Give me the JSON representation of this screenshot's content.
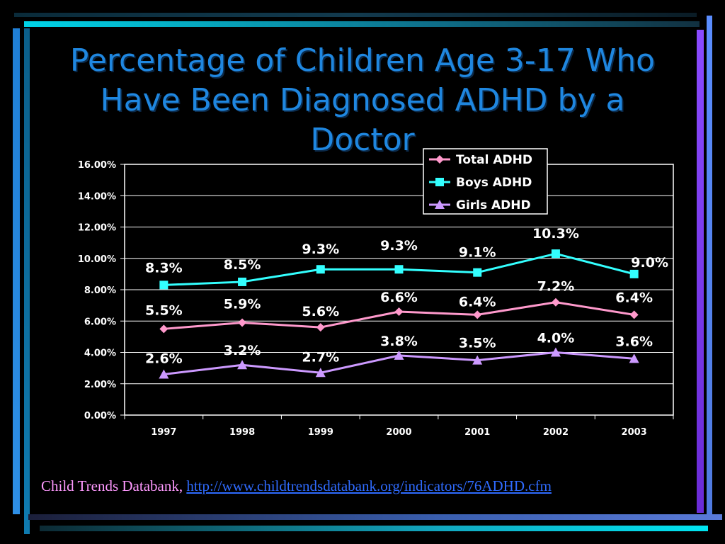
{
  "colors": {
    "background": "#000000",
    "title": "#1f87e0",
    "plot_background": "#000000",
    "grid": "#ffffff",
    "text": "#ffffff",
    "total": "#ff99cc",
    "boys": "#33ffff",
    "girls": "#cc99ff",
    "footer_text": "#ff99ff",
    "link": "#2f6bff"
  },
  "slide": {
    "title_lines": [
      "Percentage of Children Age 3-17 Who",
      "Have Been Diagnosed ADHD by a",
      "Doctor"
    ],
    "source_text": "Child Trends Databank,",
    "source_link": "http://www.childtrendsdatabank.org/indicators/76ADHD.cfm"
  },
  "chart_data": {
    "type": "line",
    "title": "Percentage of Children Age 3-17 Who Have Been Diagnosed ADHD by a Doctor",
    "xlabel": "",
    "ylabel": "",
    "categories": [
      "1997",
      "1998",
      "1999",
      "2000",
      "2001",
      "2002",
      "2003"
    ],
    "ylim": [
      0,
      16
    ],
    "yticks": [
      "0.00%",
      "2.00%",
      "4.00%",
      "6.00%",
      "8.00%",
      "10.00%",
      "12.00%",
      "14.00%",
      "16.00%"
    ],
    "grid": true,
    "legend_position": "top-right",
    "series": [
      {
        "name": "Total ADHD",
        "marker": "diamond",
        "values": [
          5.5,
          5.9,
          5.6,
          6.6,
          6.4,
          7.2,
          6.4
        ],
        "labels": [
          "5.5%",
          "5.9%",
          "5.6%",
          "6.6%",
          "6.4%",
          "7.2%",
          "6.4%"
        ]
      },
      {
        "name": "Boys ADHD",
        "marker": "square",
        "values": [
          8.3,
          8.5,
          9.3,
          9.3,
          9.1,
          10.3,
          9.0
        ],
        "labels": [
          "8.3%",
          "8.5%",
          "9.3%",
          "9.3%",
          "9.1%",
          "10.3%",
          "9.0%"
        ]
      },
      {
        "name": "Girls ADHD",
        "marker": "triangle",
        "values": [
          2.6,
          3.2,
          2.7,
          3.8,
          3.5,
          4.0,
          3.6
        ],
        "labels": [
          "2.6%",
          "3.2%",
          "2.7%",
          "3.8%",
          "3.5%",
          "4.0%",
          "3.6%"
        ]
      }
    ]
  }
}
